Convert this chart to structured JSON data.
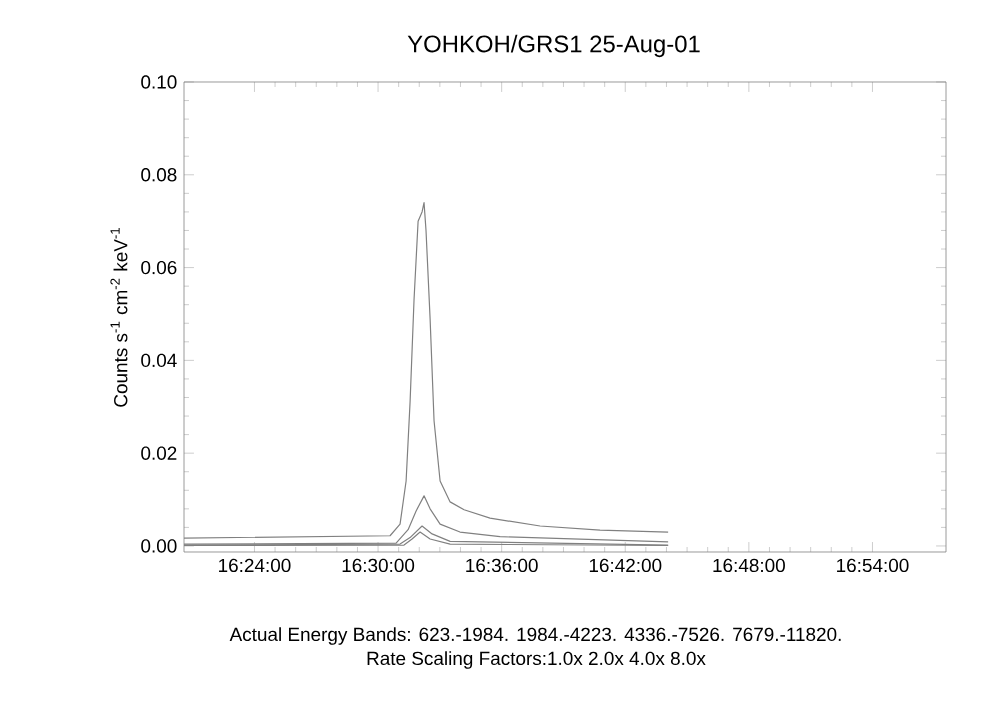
{
  "chart_data": {
    "type": "line",
    "title": "YOHKOH/GRS1 25-Aug-01",
    "ylabel": "Counts s$^{-1}$ cm$^{-2}$ keV$^{-1}$",
    "annotations": [
      "Actual Energy Bands: 623.-1984. 1984.-4223. 4336.-7526. 7679.-11820.",
      "Rate Scaling Factors:1.0x 2.0x 4.0x 8.0x"
    ],
    "xlim": [
      16.343,
      16.9595
    ],
    "ylim": [
      -0.0013,
      0.1
    ],
    "xticks": [
      {
        "value": 16.4,
        "label": "16:24:00"
      },
      {
        "value": 16.5,
        "label": "16:30:00"
      },
      {
        "value": 16.6,
        "label": "16:36:00"
      },
      {
        "value": 16.7,
        "label": "16:42:00"
      },
      {
        "value": 16.8,
        "label": "16:48:00"
      },
      {
        "value": 16.9,
        "label": "16:54:00"
      }
    ],
    "yticks": [
      {
        "value": 0,
        "label": "0.00"
      },
      {
        "value": 0.02,
        "label": "0.02"
      },
      {
        "value": 0.04,
        "label": "0.04"
      },
      {
        "value": 0.06,
        "label": "0.06"
      },
      {
        "value": 0.08,
        "label": "0.08"
      },
      {
        "value": 0.1,
        "label": "0.10"
      }
    ],
    "series": [
      {
        "color": "#808080",
        "x": [
          16.343,
          16.5097,
          16.5178,
          16.5227,
          16.5259,
          16.5291,
          16.5324,
          16.5356,
          16.5372,
          16.5388,
          16.5421,
          16.5453,
          16.5502,
          16.5583,
          16.5696,
          16.5906,
          16.6311,
          16.6796,
          16.7347
        ],
        "values": [
          0.0017,
          0.0022,
          0.0047,
          0.014,
          0.031,
          0.053,
          0.07,
          0.072,
          0.074,
          0.068,
          0.049,
          0.027,
          0.014,
          0.0095,
          0.0078,
          0.006,
          0.0043,
          0.0034,
          0.003
        ]
      },
      {
        "color": "#808080",
        "x": [
          16.343,
          16.5146,
          16.5243,
          16.5307,
          16.5372,
          16.5421,
          16.5502,
          16.5663,
          16.5987,
          16.7347
        ],
        "values": [
          0.0004,
          0.0006,
          0.0035,
          0.0075,
          0.0108,
          0.008,
          0.0047,
          0.003,
          0.002,
          0.0009
        ]
      },
      {
        "color": "#808080",
        "x": [
          16.343,
          16.5178,
          16.5259,
          16.5356,
          16.5437,
          16.5583,
          16.7347
        ],
        "values": [
          0.0002,
          0.0004,
          0.0018,
          0.0043,
          0.0026,
          0.001,
          0.0002
        ]
      },
      {
        "color": "#808080",
        "x": [
          16.343,
          16.521,
          16.5275,
          16.534,
          16.5421,
          16.5583,
          16.7347
        ],
        "values": [
          0.0001,
          0.0002,
          0.0015,
          0.003,
          0.0015,
          0.0004,
          0.0001
        ]
      }
    ]
  }
}
